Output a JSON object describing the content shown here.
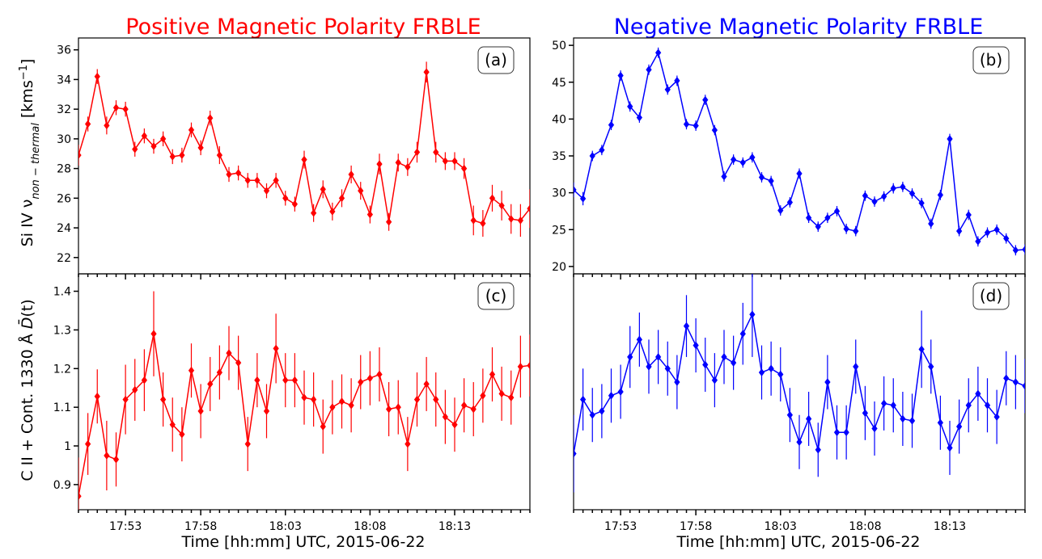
{
  "chart_data": [
    {
      "type": "line",
      "panel": "a",
      "title": "Positive Magnetic Polarity FRBLE",
      "title_color": "#ff0000",
      "color": "#ff0000",
      "label": "(a)",
      "ylabel": "Si IV ν_non−thermal [kms⁻¹]",
      "ylabel_parts": {
        "prefix": "Si IV ν",
        "sub": "non − thermal",
        "unit": "[kms",
        "sup": "−1",
        "close": "]"
      },
      "ylim": [
        20.9,
        36.8
      ],
      "yticks": [
        22,
        24,
        26,
        28,
        30,
        32,
        34,
        36
      ],
      "values": [
        28.9,
        31.0,
        34.2,
        30.9,
        32.1,
        32.0,
        29.3,
        30.2,
        29.5,
        30.0,
        28.8,
        28.9,
        30.6,
        29.4,
        31.4,
        28.9,
        27.6,
        27.7,
        27.2,
        27.2,
        26.5,
        27.2,
        26.0,
        25.6,
        28.6,
        25.0,
        26.6,
        25.1,
        26.0,
        27.6,
        26.5,
        24.9,
        28.3,
        24.4,
        28.4,
        28.1,
        29.1,
        34.5,
        29.1,
        28.5,
        28.5,
        28.0,
        24.5,
        24.3,
        26.0,
        25.5,
        24.6,
        24.5,
        25.3
      ],
      "errors": [
        0.7,
        0.5,
        0.5,
        0.6,
        0.5,
        0.5,
        0.5,
        0.5,
        0.5,
        0.5,
        0.5,
        0.5,
        0.5,
        0.5,
        0.5,
        0.6,
        0.5,
        0.5,
        0.5,
        0.5,
        0.5,
        0.5,
        0.5,
        0.5,
        0.6,
        0.6,
        0.6,
        0.6,
        0.6,
        0.6,
        0.6,
        0.6,
        0.7,
        0.6,
        0.6,
        0.6,
        0.7,
        0.7,
        0.7,
        0.6,
        0.6,
        0.7,
        1.0,
        0.9,
        0.9,
        1.0,
        1.0,
        1.1,
        1.3
      ]
    },
    {
      "type": "line",
      "panel": "b",
      "title": "Negative Magnetic Polarity FRBLE",
      "title_color": "#0000ff",
      "color": "#0000ff",
      "label": "(b)",
      "ylim": [
        19.0,
        51.0
      ],
      "yticks": [
        20,
        25,
        30,
        35,
        40,
        45,
        50
      ],
      "values": [
        30.4,
        29.2,
        35.0,
        35.8,
        39.2,
        45.9,
        41.7,
        40.2,
        46.7,
        49.0,
        44.0,
        45.2,
        39.3,
        39.1,
        42.6,
        38.5,
        32.2,
        34.5,
        34.1,
        34.8,
        32.1,
        31.6,
        27.6,
        28.7,
        32.6,
        26.6,
        25.4,
        26.6,
        27.5,
        25.1,
        24.8,
        29.6,
        28.8,
        29.5,
        30.6,
        30.8,
        29.9,
        28.6,
        25.8,
        29.7,
        37.3,
        24.8,
        27.0,
        23.4,
        24.6,
        25.0,
        23.8,
        22.2,
        22.3
      ],
      "errors": [
        1.0,
        0.9,
        0.7,
        0.7,
        0.7,
        0.7,
        0.7,
        0.7,
        0.7,
        0.7,
        0.7,
        0.7,
        0.7,
        0.7,
        0.7,
        0.7,
        0.7,
        0.7,
        0.7,
        0.7,
        0.7,
        0.7,
        0.7,
        0.7,
        0.7,
        0.7,
        0.7,
        0.7,
        0.7,
        0.7,
        0.7,
        0.7,
        0.7,
        0.7,
        0.7,
        0.7,
        0.7,
        0.7,
        0.7,
        0.7,
        0.7,
        0.7,
        0.7,
        0.7,
        0.7,
        0.7,
        0.7,
        0.7,
        0.7
      ]
    },
    {
      "type": "line",
      "panel": "c",
      "color": "#ff0000",
      "label": "(c)",
      "ylabel": "C II + Cont. 1330 Å D̄(t)",
      "ylabel_parts": {
        "prefix": "C II + Cont. 1330 Å ",
        "sym": "D̄",
        "suffix": "(t)"
      },
      "xlabel": "Time [hh:mm] UTC, 2015-06-22",
      "xtick_labels": [
        "17:53",
        "17:58",
        "18:03",
        "18:08",
        "18:13"
      ],
      "ylim": [
        0.835,
        1.445
      ],
      "yticks": [
        0.9,
        1.0,
        1.1,
        1.2,
        1.3,
        1.4
      ],
      "values": [
        0.87,
        1.005,
        1.128,
        0.975,
        0.965,
        1.12,
        1.145,
        1.17,
        1.29,
        1.12,
        1.055,
        1.03,
        1.195,
        1.09,
        1.16,
        1.19,
        1.24,
        1.215,
        1.005,
        1.17,
        1.09,
        1.252,
        1.17,
        1.17,
        1.125,
        1.12,
        1.05,
        1.1,
        1.115,
        1.105,
        1.165,
        1.175,
        1.185,
        1.095,
        1.1,
        1.005,
        1.12,
        1.16,
        1.12,
        1.075,
        1.055,
        1.105,
        1.095,
        1.13,
        1.185,
        1.135,
        1.125,
        1.205,
        1.208
      ],
      "errors": [
        0.1,
        0.08,
        0.07,
        0.09,
        0.07,
        0.09,
        0.08,
        0.08,
        0.11,
        0.07,
        0.07,
        0.07,
        0.07,
        0.07,
        0.07,
        0.07,
        0.07,
        0.07,
        0.07,
        0.07,
        0.07,
        0.09,
        0.07,
        0.07,
        0.07,
        0.07,
        0.07,
        0.07,
        0.07,
        0.07,
        0.07,
        0.07,
        0.07,
        0.07,
        0.07,
        0.07,
        0.07,
        0.07,
        0.07,
        0.07,
        0.07,
        0.07,
        0.07,
        0.07,
        0.07,
        0.07,
        0.07,
        0.08,
        0.08
      ]
    },
    {
      "type": "line",
      "panel": "d",
      "color": "#0000ff",
      "label": "(d)",
      "xlabel": "Time [hh:mm] UTC, 2015-06-22",
      "xtick_labels": [
        "17:53",
        "17:58",
        "18:03",
        "18:08",
        "18:13"
      ],
      "ylim": [
        0.835,
        1.445
      ],
      "yticks": [],
      "values": [
        0.98,
        1.12,
        1.08,
        1.09,
        1.13,
        1.14,
        1.23,
        1.275,
        1.205,
        1.23,
        1.2,
        1.165,
        1.31,
        1.26,
        1.21,
        1.17,
        1.23,
        1.215,
        1.29,
        1.34,
        1.19,
        1.2,
        1.185,
        1.08,
        1.01,
        1.07,
        0.99,
        1.165,
        1.035,
        1.035,
        1.205,
        1.085,
        1.045,
        1.11,
        1.105,
        1.07,
        1.065,
        1.25,
        1.205,
        1.06,
        0.995,
        1.05,
        1.105,
        1.135,
        1.105,
        1.075,
        1.175,
        1.165,
        1.155
      ],
      "errors": [
        0.1,
        0.08,
        0.07,
        0.07,
        0.07,
        0.07,
        0.08,
        0.07,
        0.07,
        0.07,
        0.07,
        0.07,
        0.08,
        0.07,
        0.07,
        0.07,
        0.07,
        0.07,
        0.08,
        0.11,
        0.07,
        0.07,
        0.07,
        0.07,
        0.07,
        0.07,
        0.07,
        0.07,
        0.07,
        0.07,
        0.07,
        0.07,
        0.07,
        0.07,
        0.07,
        0.07,
        0.07,
        0.1,
        0.07,
        0.07,
        0.07,
        0.07,
        0.07,
        0.07,
        0.07,
        0.07,
        0.07,
        0.07,
        0.07
      ]
    }
  ]
}
